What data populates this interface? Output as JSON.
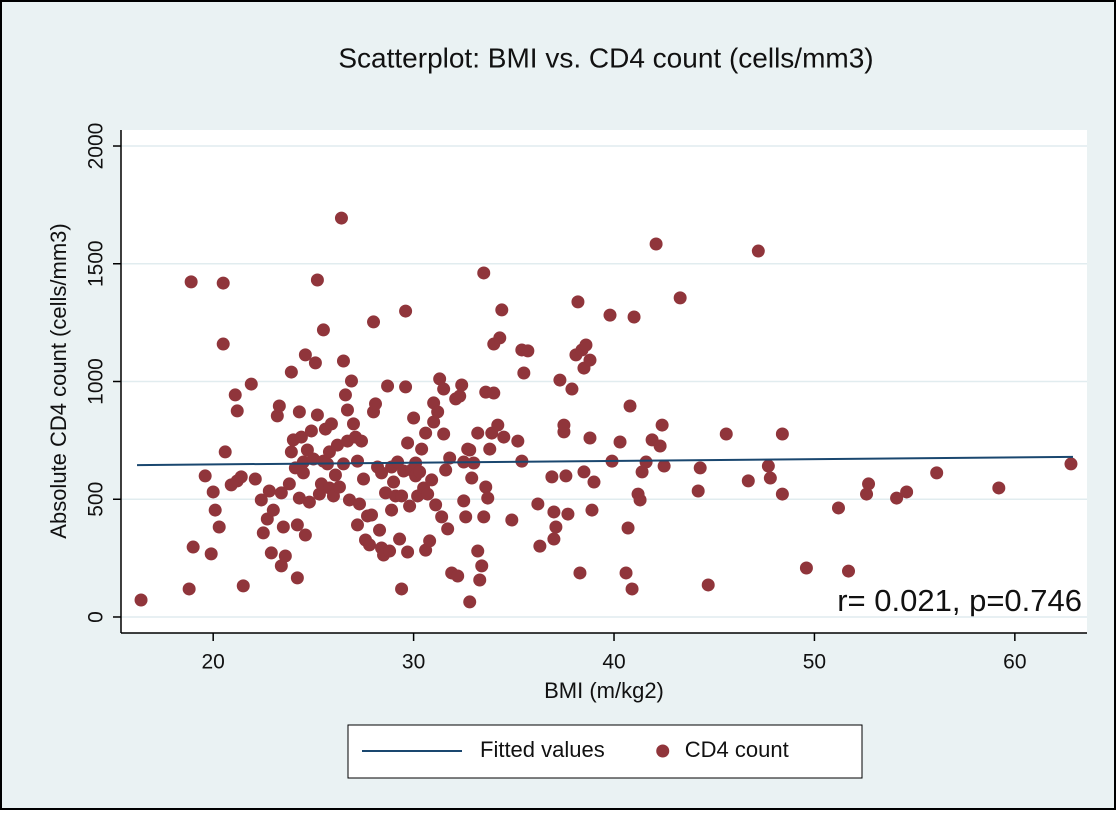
{
  "chart_data": {
    "type": "scatter",
    "title": "Scatterplot: BMI vs. CD4 count (cells/mm3)",
    "x_label": "BMI (m/kg2)",
    "y_label": "Absolute CD4 count (cells/mm3)",
    "annotations": [
      "r= 0.021, p=0.746"
    ],
    "xlim": [
      15.4,
      63.6
    ],
    "ylim": [
      -68,
      2068
    ],
    "xticks": [
      20,
      30,
      40,
      50,
      60
    ],
    "yticks": [
      0,
      500,
      1000,
      1500,
      2000
    ],
    "grid": true,
    "legend": "bottom",
    "series": [
      {
        "name": "Fitted values",
        "type": "line",
        "color": "#1a476f",
        "x": [
          16.2,
          62.9
        ],
        "values": [
          645,
          680
        ]
      },
      {
        "name": "CD4 count",
        "type": "scatter",
        "color": "#90353b",
        "x": [
          16.4,
          18.9,
          20.5,
          19.0,
          18.8,
          19.6,
          19.9,
          20.0,
          20.1,
          20.3,
          20.6,
          20.5,
          20.9,
          21.1,
          21.2,
          21.2,
          21.5,
          21.4,
          21.9,
          22.1,
          22.4,
          22.5,
          22.7,
          22.8,
          22.9,
          23.0,
          23.2,
          23.3,
          23.4,
          23.4,
          23.5,
          23.6,
          23.8,
          23.9,
          23.9,
          24.0,
          24.1,
          24.2,
          24.2,
          24.3,
          24.3,
          24.4,
          24.5,
          24.5,
          24.6,
          24.6,
          24.7,
          24.8,
          24.9,
          25.0,
          25.1,
          25.2,
          25.2,
          25.3,
          25.4,
          25.5,
          25.5,
          25.6,
          25.7,
          25.8,
          25.8,
          25.9,
          26.0,
          26.1,
          26.2,
          26.3,
          26.4,
          26.5,
          26.5,
          26.6,
          26.7,
          26.7,
          26.8,
          26.9,
          27.0,
          27.1,
          27.2,
          27.2,
          27.3,
          27.4,
          27.5,
          27.6,
          27.7,
          27.8,
          27.9,
          28.0,
          28.0,
          28.1,
          28.2,
          28.3,
          28.4,
          28.4,
          28.5,
          28.6,
          28.7,
          28.8,
          28.9,
          28.9,
          29.0,
          29.1,
          29.2,
          29.3,
          29.4,
          29.4,
          29.5,
          29.6,
          29.6,
          29.7,
          29.7,
          29.8,
          29.9,
          30.0,
          30.1,
          30.1,
          30.2,
          30.3,
          30.4,
          30.5,
          30.6,
          30.6,
          30.7,
          30.8,
          30.9,
          31.0,
          31.0,
          31.1,
          31.2,
          31.3,
          31.4,
          31.5,
          31.5,
          31.6,
          31.7,
          31.8,
          31.9,
          32.1,
          32.2,
          32.3,
          32.4,
          32.5,
          32.5,
          32.6,
          32.7,
          32.8,
          32.8,
          32.9,
          33.0,
          33.2,
          33.2,
          33.3,
          33.4,
          33.5,
          33.5,
          33.6,
          33.6,
          33.7,
          33.8,
          33.9,
          34.0,
          34.0,
          34.2,
          34.3,
          34.4,
          34.5,
          34.9,
          35.2,
          35.4,
          35.5,
          35.4,
          35.7,
          36.2,
          36.3,
          36.9,
          37.0,
          37.0,
          37.1,
          37.3,
          37.5,
          37.5,
          37.6,
          37.7,
          37.9,
          38.1,
          38.2,
          38.3,
          38.4,
          38.5,
          38.5,
          38.6,
          38.8,
          38.8,
          39.0,
          38.9,
          39.8,
          39.9,
          40.3,
          40.6,
          40.7,
          40.8,
          40.9,
          41.0,
          41.2,
          41.3,
          41.4,
          41.6,
          41.9,
          42.1,
          42.3,
          42.4,
          42.5,
          43.3,
          44.2,
          44.3,
          44.7,
          45.6,
          46.7,
          47.2,
          47.7,
          47.8,
          48.4,
          48.4,
          49.6,
          51.2,
          51.7,
          52.6,
          52.7,
          54.1,
          54.6,
          56.1,
          59.2,
          62.8
        ],
        "values": [
          72,
          1423,
          1418,
          297,
          119,
          599,
          268,
          531,
          454,
          382,
          701,
          1159,
          561,
          943,
          875,
          578,
          132,
          595,
          989,
          586,
          497,
          357,
          416,
          535,
          272,
          454,
          854,
          896,
          527,
          217,
          382,
          259,
          565,
          1040,
          701,
          752,
          633,
          166,
          391,
          505,
          871,
          764,
          658,
          612,
          1113,
          348,
          709,
          488,
          790,
          671,
          1079,
          1431,
          858,
          522,
          565,
          1219,
          662,
          798,
          650,
          548,
          701,
          820,
          514,
          603,
          730,
          552,
          1694,
          650,
          1087,
          943,
          879,
          747,
          497,
          1002,
          820,
          764,
          391,
          662,
          480,
          747,
          586,
          327,
          429,
          306,
          433,
          871,
          1253,
          905,
          637,
          369,
          293,
          612,
          263,
          527,
          981,
          280,
          637,
          454,
          573,
          514,
          658,
          331,
          119,
          514,
          620,
          977,
          1299,
          276,
          739,
          471,
          624,
          845,
          654,
          599,
          514,
          616,
          713,
          548,
          781,
          284,
          522,
          323,
          582,
          828,
          909,
          476,
          871,
          1011,
          425,
          777,
          968,
          624,
          374,
          675,
          187,
          926,
          174,
          938,
          985,
          658,
          493,
          425,
          713,
          64,
          709,
          590,
          654,
          781,
          280,
          157,
          217,
          425,
          1461,
          955,
          552,
          505,
          713,
          781,
          1159,
          951,
          815,
          1185,
          1304,
          764,
          412,
          747,
          662,
          1036,
          1134,
          1130,
          480,
          301,
          595,
          446,
          331,
          382,
          1006,
          786,
          815,
          599,
          437,
          968,
          1113,
          1338,
          187,
          1134,
          616,
          1057,
          1155,
          1091,
          760,
          573,
          454,
          1282,
          662,
          743,
          187,
          378,
          896,
          119,
          1274,
          522,
          497,
          616,
          658,
          752,
          1584,
          726,
          815,
          641,
          1355,
          535,
          633,
          136,
          777,
          578,
          1554,
          641,
          590,
          522,
          777,
          208,
          463,
          195,
          522,
          565,
          505,
          531,
          612,
          548,
          650
        ]
      }
    ]
  }
}
